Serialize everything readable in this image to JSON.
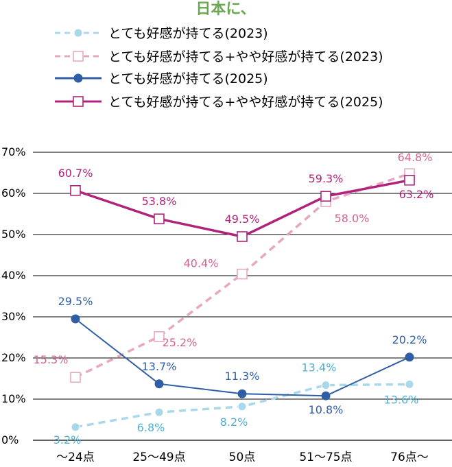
{
  "chart_data": {
    "type": "line",
    "title": "日本に、",
    "categories": [
      "～24点",
      "25～49点",
      "50点",
      "51～75点",
      "76点～"
    ],
    "ylim": [
      0,
      70
    ],
    "yticks": [
      "0%",
      "10%",
      "20%",
      "30%",
      "40%",
      "50%",
      "60%",
      "70%"
    ],
    "grid": true,
    "legend_position": "top",
    "series": [
      {
        "name": "とても好感が持てる(2023)",
        "values": [
          3.2,
          6.8,
          8.2,
          13.4,
          13.6
        ],
        "labels": [
          "3.2%",
          "6.8%",
          "8.2%",
          "13.4%",
          "13.6%"
        ],
        "color": "#a8d8ea",
        "label_color": "#4fb0d3",
        "dashed": true,
        "marker": "circle-filled"
      },
      {
        "name": "とても好感が持てる+やや好感が持てる(2023)",
        "values": [
          15.3,
          25.2,
          40.4,
          58.0,
          64.8
        ],
        "labels": [
          "15.3%",
          "25.2%",
          "40.4%",
          "58.0%",
          "64.8%"
        ],
        "color": "#e6a8c0",
        "label_color": "#d2648f",
        "dashed": true,
        "marker": "square-open"
      },
      {
        "name": "とても好感が持てる(2025)",
        "values": [
          29.5,
          13.7,
          11.3,
          10.8,
          20.2
        ],
        "labels": [
          "29.5%",
          "13.7%",
          "11.3%",
          "10.8%",
          "20.2%"
        ],
        "color": "#2f5ea6",
        "label_color": "#2f5ea6",
        "dashed": false,
        "marker": "circle-filled"
      },
      {
        "name": "とても好感が持てる+やや好感が持てる(2025)",
        "values": [
          60.7,
          53.8,
          49.5,
          59.3,
          63.2
        ],
        "labels": [
          "60.7%",
          "53.8%",
          "49.5%",
          "59.3%",
          "63.2%"
        ],
        "color": "#b0237a",
        "label_color": "#b0237a",
        "dashed": false,
        "marker": "square-open"
      }
    ],
    "title_color": "#6aa84f"
  }
}
